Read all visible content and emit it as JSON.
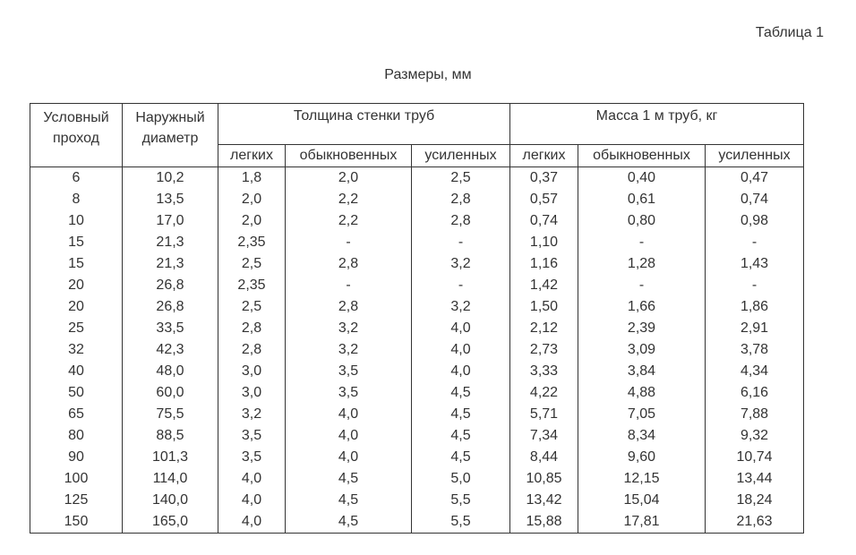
{
  "table_number": "Таблица 1",
  "caption": "Размеры, мм",
  "headers": {
    "nominal_bore": [
      "Условный",
      "проход"
    ],
    "outer_diameter": [
      "Наружный",
      "диаметр"
    ],
    "wall_thickness": "Толщина стенки труб",
    "mass": "Масса 1 м труб, кг",
    "sub": [
      "легких",
      "обыкновенных",
      "усиленных",
      "легких",
      "обыкновенных",
      "усиленных"
    ]
  },
  "rows": [
    [
      "6",
      "10,2",
      "1,8",
      "2,0",
      "2,5",
      "0,37",
      "0,40",
      "0,47"
    ],
    [
      "8",
      "13,5",
      "2,0",
      "2,2",
      "2,8",
      "0,57",
      "0,61",
      "0,74"
    ],
    [
      "10",
      "17,0",
      "2,0",
      "2,2",
      "2,8",
      "0,74",
      "0,80",
      "0,98"
    ],
    [
      "15",
      "21,3",
      "2,35",
      "-",
      "-",
      "1,10",
      "-",
      "-"
    ],
    [
      "15",
      "21,3",
      "2,5",
      "2,8",
      "3,2",
      "1,16",
      "1,28",
      "1,43"
    ],
    [
      "20",
      "26,8",
      "2,35",
      "-",
      "-",
      "1,42",
      "-",
      "-"
    ],
    [
      "20",
      "26,8",
      "2,5",
      "2,8",
      "3,2",
      "1,50",
      "1,66",
      "1,86"
    ],
    [
      "25",
      "33,5",
      "2,8",
      "3,2",
      "4,0",
      "2,12",
      "2,39",
      "2,91"
    ],
    [
      "32",
      "42,3",
      "2,8",
      "3,2",
      "4,0",
      "2,73",
      "3,09",
      "3,78"
    ],
    [
      "40",
      "48,0",
      "3,0",
      "3,5",
      "4,0",
      "3,33",
      "3,84",
      "4,34"
    ],
    [
      "50",
      "60,0",
      "3,0",
      "3,5",
      "4,5",
      "4,22",
      "4,88",
      "6,16"
    ],
    [
      "65",
      "75,5",
      "3,2",
      "4,0",
      "4,5",
      "5,71",
      "7,05",
      "7,88"
    ],
    [
      "80",
      "88,5",
      "3,5",
      "4,0",
      "4,5",
      "7,34",
      "8,34",
      "9,32"
    ],
    [
      "90",
      "101,3",
      "3,5",
      "4,0",
      "4,5",
      "8,44",
      "9,60",
      "10,74"
    ],
    [
      "100",
      "114,0",
      "4,0",
      "4,5",
      "5,0",
      "10,85",
      "12,15",
      "13,44"
    ],
    [
      "125",
      "140,0",
      "4,0",
      "4,5",
      "5,5",
      "13,42",
      "15,04",
      "18,24"
    ],
    [
      "150",
      "165,0",
      "4,0",
      "4,5",
      "5,5",
      "15,88",
      "17,81",
      "21,63"
    ]
  ]
}
